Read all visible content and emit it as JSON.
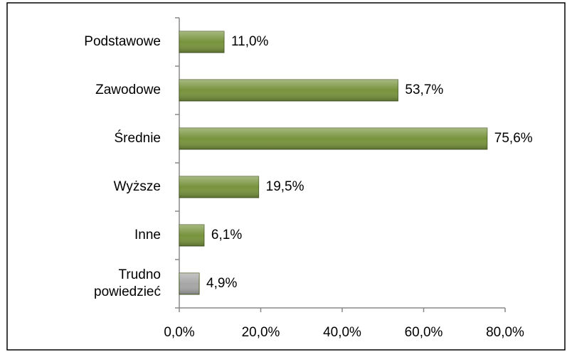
{
  "chart_data": {
    "type": "barh",
    "categories": [
      "Podstawowe",
      "Zawodowe",
      "Średnie",
      "Wyższe",
      "Inne",
      "Trudno powiedzieć"
    ],
    "values": [
      11.0,
      53.7,
      75.6,
      19.5,
      6.1,
      4.9
    ],
    "value_labels": [
      "11,0%",
      "53,7%",
      "75,6%",
      "19,5%",
      "6,1%",
      "4,9%"
    ],
    "colors": [
      "#77933c",
      "#77933c",
      "#77933c",
      "#77933c",
      "#77933c",
      "#a6a6a6"
    ],
    "xlim": [
      0,
      80
    ],
    "xticks": [
      {
        "value": 0,
        "label": "0,0%"
      },
      {
        "value": 20,
        "label": "20,0%"
      },
      {
        "value": 40,
        "label": "40,0%"
      },
      {
        "value": 60,
        "label": "60,0%"
      },
      {
        "value": 80,
        "label": "80,0%"
      }
    ],
    "grid": false
  }
}
